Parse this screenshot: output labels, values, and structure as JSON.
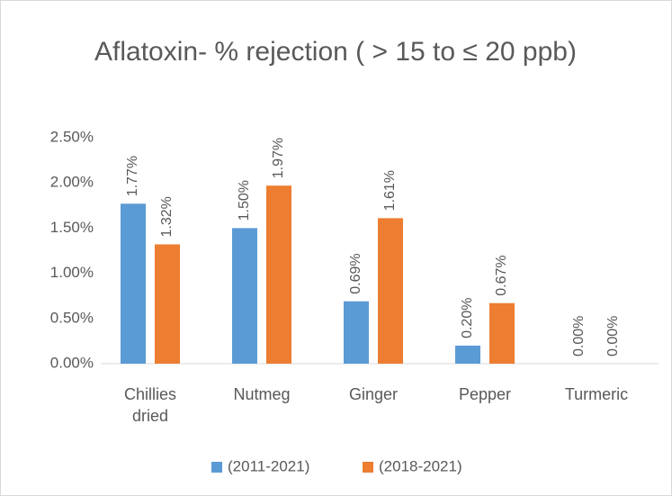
{
  "chart_data": {
    "type": "bar",
    "title": "Aflatoxin- % rejection ( > 15 to ≤ 20 ppb)",
    "categories": [
      "Chillies dried",
      "Nutmeg",
      "Ginger",
      "Pepper",
      "Turmeric"
    ],
    "series": [
      {
        "name": "(2011-2021)",
        "color": "#5b9bd5",
        "values": [
          1.77,
          1.5,
          0.69,
          0.2,
          0.0
        ],
        "value_labels": [
          "1.77%",
          "1.50%",
          "0.69%",
          "0.20%",
          "0.00%"
        ]
      },
      {
        "name": "(2018-2021)",
        "color": "#ed7d31",
        "values": [
          1.32,
          1.97,
          1.61,
          0.67,
          0.0
        ],
        "value_labels": [
          "1.32%",
          "1.97%",
          "1.61%",
          "0.67%",
          "0.00%"
        ]
      }
    ],
    "ylim": [
      0,
      2.5
    ],
    "yticks": [
      {
        "value": 0,
        "label": "0.00%"
      },
      {
        "value": 0.5,
        "label": "0.50%"
      },
      {
        "value": 1,
        "label": "1.00%"
      },
      {
        "value": 1.5,
        "label": "1.50%"
      },
      {
        "value": 2,
        "label": "2.00%"
      },
      {
        "value": 2.5,
        "label": "2.50%"
      }
    ],
    "grid": false,
    "legend": "bottom"
  }
}
